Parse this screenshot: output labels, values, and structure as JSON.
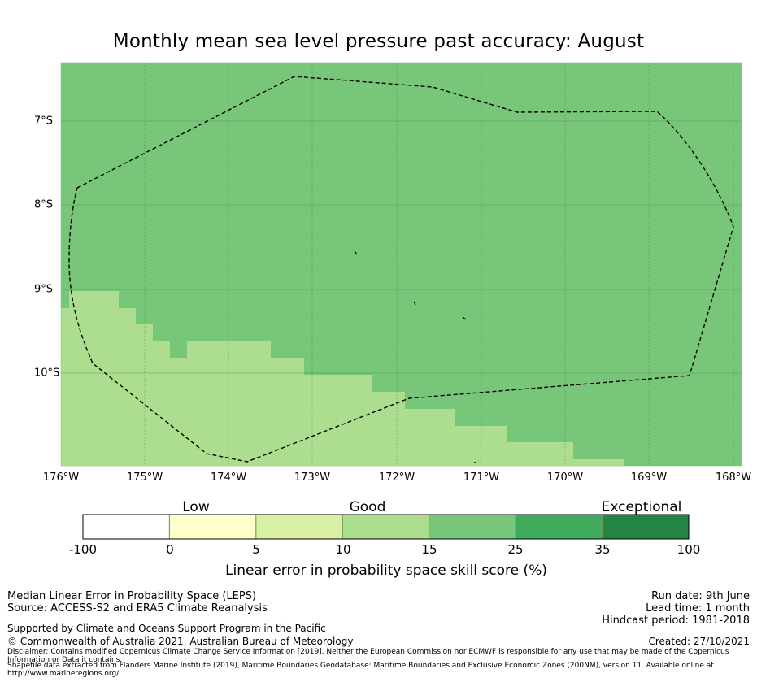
{
  "title": "Monthly mean sea level pressure past accuracy: August",
  "map": {
    "lon_labels": [
      "176°W",
      "175°W",
      "174°W",
      "173°W",
      "172°W",
      "171°W",
      "170°W",
      "169°W",
      "168°W"
    ],
    "lat_labels": [
      "7°S",
      "8°S",
      "9°S",
      "10°S"
    ],
    "background_color": "#78c679",
    "low_skill_color": "#addd8e"
  },
  "colorbar": {
    "categories": [
      "Low",
      "Good",
      "Exceptional"
    ],
    "ticks": [
      "-100",
      "0",
      "5",
      "10",
      "15",
      "25",
      "35",
      "100"
    ],
    "colors": [
      "#ffffff",
      "#ffffcc",
      "#d9f0a3",
      "#addd8e",
      "#78c679",
      "#41ab5d",
      "#238443"
    ],
    "label": "Linear error in probability space skill score (%)"
  },
  "footer": {
    "line1": "Median Linear Error in Probability Space (LEPS)",
    "line2": "Source: ACCESS-S2 and ERA5 Climate Reanalysis",
    "support": "Supported by Climate and Oceans Support Program in the Pacific",
    "copyright": "© Commonwealth of Australia 2021, Australian Bureau of Meteorology",
    "disclaimer": "Disclaimer: Contains modified Copernicus Climate Change Service Information [2019]. Neither the European Commission nor ECMWF is responsible for any use that may be made of the Copernicus Information or Data it contains.",
    "shapefile": "Shapefile data extracted from Flanders Marine Institute (2019), Maritime Boundaries Geodatabase: Maritime Boundaries and Exclusive Economic Zones (200NM), version 11. Available online at http://www.marineregions.org/.",
    "run_date": "Run date: 9th June",
    "lead_time": "Lead time: 1 month",
    "hindcast": "Hindcast period: 1981-2018",
    "created": "Created: 27/10/2021"
  }
}
